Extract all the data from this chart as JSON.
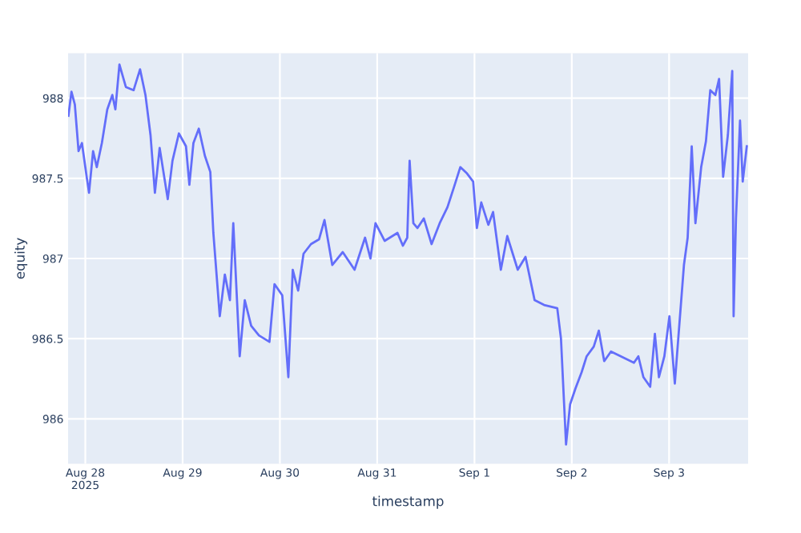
{
  "chart_data": {
    "type": "line",
    "xlabel": "timestamp",
    "ylabel": "equity",
    "grid": true,
    "legend": false,
    "xlim": [
      "2025-08-27T19:45",
      "2025-09-03T19:30"
    ],
    "ylim": [
      985.72,
      988.28
    ],
    "xticks": [
      {
        "value": "2025-08-28",
        "label": "Aug 28\n2025"
      },
      {
        "value": "2025-08-29",
        "label": "Aug 29"
      },
      {
        "value": "2025-08-30",
        "label": "Aug 30"
      },
      {
        "value": "2025-08-31",
        "label": "Aug 31"
      },
      {
        "value": "2025-09-01",
        "label": "Sep 1"
      },
      {
        "value": "2025-09-02",
        "label": "Sep 2"
      },
      {
        "value": "2025-09-03",
        "label": "Sep 3"
      }
    ],
    "yticks": [
      986,
      986.5,
      987,
      987.5,
      988
    ],
    "series": [
      {
        "color": "#636efa",
        "x": [
          "2025-08-27T19:50",
          "2025-08-27T20:35",
          "2025-08-27T21:25",
          "2025-08-27T22:20",
          "2025-08-27T23:10",
          "2025-08-28T00:20",
          "2025-08-28T00:55",
          "2025-08-28T01:55",
          "2025-08-28T02:50",
          "2025-08-28T04:05",
          "2025-08-28T05:25",
          "2025-08-28T06:40",
          "2025-08-28T07:25",
          "2025-08-28T08:25",
          "2025-08-28T10:00",
          "2025-08-28T11:55",
          "2025-08-28T13:30",
          "2025-08-28T14:50",
          "2025-08-28T16:05",
          "2025-08-28T17:10",
          "2025-08-28T18:20",
          "2025-08-28T20:20",
          "2025-08-28T21:30",
          "2025-08-28T23:05",
          "2025-08-29T00:50",
          "2025-08-29T01:40",
          "2025-08-29T02:40",
          "2025-08-29T04:00",
          "2025-08-29T05:30",
          "2025-08-29T06:50",
          "2025-08-29T07:35",
          "2025-08-29T09:10",
          "2025-08-29T10:25",
          "2025-08-29T11:40",
          "2025-08-29T12:30",
          "2025-08-29T14:05",
          "2025-08-29T15:20",
          "2025-08-29T16:55",
          "2025-08-29T18:50",
          "2025-08-29T21:25",
          "2025-08-29T22:40",
          "2025-08-30T00:35",
          "2025-08-30T02:05",
          "2025-08-30T03:10",
          "2025-08-30T04:30",
          "2025-08-30T05:50",
          "2025-08-30T07:40",
          "2025-08-30T09:40",
          "2025-08-30T11:00",
          "2025-08-30T12:55",
          "2025-08-30T15:30",
          "2025-08-30T18:25",
          "2025-08-30T21:00",
          "2025-08-30T22:20",
          "2025-08-30T23:35",
          "2025-08-31T01:50",
          "2025-08-31T05:00",
          "2025-08-31T06:20",
          "2025-08-31T07:25",
          "2025-08-31T08:00",
          "2025-08-31T08:55",
          "2025-08-31T09:55",
          "2025-08-31T11:30",
          "2025-08-31T13:25",
          "2025-08-31T15:25",
          "2025-08-31T17:20",
          "2025-08-31T19:00",
          "2025-08-31T20:30",
          "2025-08-31T22:10",
          "2025-08-31T23:40",
          "2025-09-01T00:35",
          "2025-09-01T01:40",
          "2025-09-01T03:25",
          "2025-09-01T04:35",
          "2025-09-01T06:30",
          "2025-09-01T08:05",
          "2025-09-01T10:40",
          "2025-09-01T12:35",
          "2025-09-01T14:50",
          "2025-09-01T17:10",
          "2025-09-01T20:25",
          "2025-09-01T21:20",
          "2025-09-01T22:35",
          "2025-09-01T23:35",
          "2025-09-02T00:55",
          "2025-09-02T02:25",
          "2025-09-02T03:40",
          "2025-09-02T05:25",
          "2025-09-02T06:40",
          "2025-09-02T08:00",
          "2025-09-02T09:40",
          "2025-09-02T15:20",
          "2025-09-02T16:25",
          "2025-09-02T17:40",
          "2025-09-02T19:20",
          "2025-09-02T20:30",
          "2025-09-02T21:30",
          "2025-09-02T22:50",
          "2025-09-03T00:05",
          "2025-09-03T01:25",
          "2025-09-03T02:25",
          "2025-09-03T03:40",
          "2025-09-03T04:35",
          "2025-09-03T05:35",
          "2025-09-03T06:30",
          "2025-09-03T07:55",
          "2025-09-03T09:05",
          "2025-09-03T10:10",
          "2025-09-03T11:25",
          "2025-09-03T12:20",
          "2025-09-03T13:20",
          "2025-09-03T14:30",
          "2025-09-03T15:35",
          "2025-09-03T15:55",
          "2025-09-03T16:30",
          "2025-09-03T17:30",
          "2025-09-03T18:10",
          "2025-09-03T19:10"
        ],
        "values": [
          987.89,
          988.04,
          987.96,
          987.67,
          987.72,
          987.51,
          987.41,
          987.67,
          987.57,
          987.72,
          987.93,
          988.02,
          987.93,
          988.21,
          988.07,
          988.05,
          988.18,
          988.02,
          987.77,
          987.41,
          987.69,
          987.37,
          987.61,
          987.78,
          987.7,
          987.46,
          987.72,
          987.81,
          987.64,
          987.54,
          987.16,
          986.64,
          986.9,
          986.74,
          987.22,
          986.39,
          986.74,
          986.58,
          986.52,
          986.48,
          986.84,
          986.77,
          986.26,
          986.93,
          986.8,
          987.03,
          987.09,
          987.12,
          987.24,
          986.96,
          987.04,
          986.93,
          987.13,
          987.0,
          987.22,
          987.11,
          987.16,
          987.08,
          987.13,
          987.61,
          987.22,
          987.19,
          987.25,
          987.09,
          987.22,
          987.32,
          987.45,
          987.57,
          987.53,
          987.48,
          987.19,
          987.35,
          987.21,
          987.29,
          986.93,
          987.14,
          986.93,
          987.01,
          986.74,
          986.71,
          986.69,
          986.5,
          985.84,
          986.09,
          986.19,
          986.29,
          986.39,
          986.45,
          986.55,
          986.36,
          986.42,
          986.35,
          986.39,
          986.26,
          986.2,
          986.53,
          986.26,
          986.39,
          986.64,
          986.22,
          986.55,
          986.96,
          987.13,
          987.7,
          987.22,
          987.57,
          987.73,
          988.05,
          988.02,
          988.12,
          987.51,
          987.77,
          988.17,
          986.64,
          987.25,
          987.86,
          987.48,
          987.7
        ]
      }
    ]
  }
}
